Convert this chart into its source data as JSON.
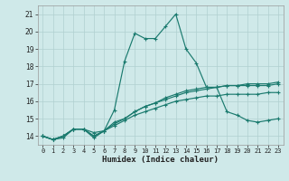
{
  "title": "",
  "xlabel": "Humidex (Indice chaleur)",
  "background_color": "#cfe9e9",
  "grid_color": "#b0d0d0",
  "line_color": "#1a7a6e",
  "xlim": [
    -0.5,
    23.5
  ],
  "ylim": [
    13.5,
    21.5
  ],
  "yticks": [
    14,
    15,
    16,
    17,
    18,
    19,
    20,
    21
  ],
  "xticks": [
    0,
    1,
    2,
    3,
    4,
    5,
    6,
    7,
    8,
    9,
    10,
    11,
    12,
    13,
    14,
    15,
    16,
    17,
    18,
    19,
    20,
    21,
    22,
    23
  ],
  "xtick_labels": [
    "0",
    "1",
    "2",
    "3",
    "4",
    "5",
    "6",
    "7",
    "8",
    "9",
    "10",
    "11",
    "12",
    "13",
    "14",
    "15",
    "16",
    "17",
    "18",
    "19",
    "20",
    "21",
    "22",
    "23"
  ],
  "series": [
    [
      14.0,
      13.8,
      13.9,
      14.4,
      14.4,
      14.2,
      14.3,
      14.8,
      15.0,
      15.4,
      15.7,
      15.9,
      16.1,
      16.3,
      16.5,
      16.6,
      16.7,
      16.8,
      16.9,
      16.9,
      17.0,
      17.0,
      17.0,
      17.1
    ],
    [
      14.0,
      13.8,
      14.0,
      14.4,
      14.4,
      13.9,
      14.3,
      15.5,
      18.3,
      19.9,
      19.6,
      19.6,
      20.3,
      21.0,
      19.0,
      18.2,
      16.8,
      16.8,
      15.4,
      15.2,
      14.9,
      14.8,
      14.9,
      15.0
    ],
    [
      14.0,
      13.8,
      14.0,
      14.4,
      14.4,
      14.0,
      14.3,
      14.7,
      15.0,
      15.4,
      15.7,
      15.9,
      16.2,
      16.4,
      16.6,
      16.7,
      16.8,
      16.8,
      16.9,
      16.9,
      16.9,
      16.9,
      16.9,
      17.0
    ],
    [
      14.0,
      13.8,
      14.0,
      14.4,
      14.4,
      14.0,
      14.3,
      14.6,
      14.9,
      15.2,
      15.4,
      15.6,
      15.8,
      16.0,
      16.1,
      16.2,
      16.3,
      16.3,
      16.4,
      16.4,
      16.4,
      16.4,
      16.5,
      16.5
    ]
  ]
}
